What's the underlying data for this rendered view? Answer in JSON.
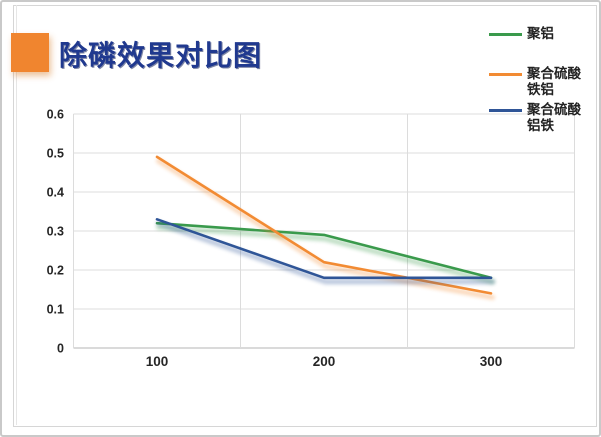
{
  "page": {
    "title": "除磷效果对比图"
  },
  "chart_data": {
    "type": "line",
    "title": "除磷效果对比图",
    "categories": [
      "100",
      "200",
      "300"
    ],
    "series": [
      {
        "name": "聚铝",
        "color": "#3a9a4c",
        "values": [
          0.32,
          0.29,
          0.18
        ]
      },
      {
        "name": "聚合硫酸铁铝",
        "color": "#f28b33",
        "values": [
          0.49,
          0.22,
          0.14
        ]
      },
      {
        "name": "聚合硫酸铝铁",
        "color": "#2f5597",
        "values": [
          0.33,
          0.18,
          0.18
        ]
      }
    ],
    "ylim": [
      0,
      0.6
    ],
    "yticks": [
      "0",
      "0.1",
      "0.2",
      "0.3",
      "0.4",
      "0.5",
      "0.6"
    ],
    "xlabel": "",
    "ylabel": "",
    "grid": true,
    "legend_position": "right"
  },
  "style": {
    "accent_square_color": "#f0852f",
    "title_color": "#20398f",
    "grid_color": "#dcdcdc",
    "axis_color": "#b4b4b4",
    "tick_label_color": "#262626"
  }
}
